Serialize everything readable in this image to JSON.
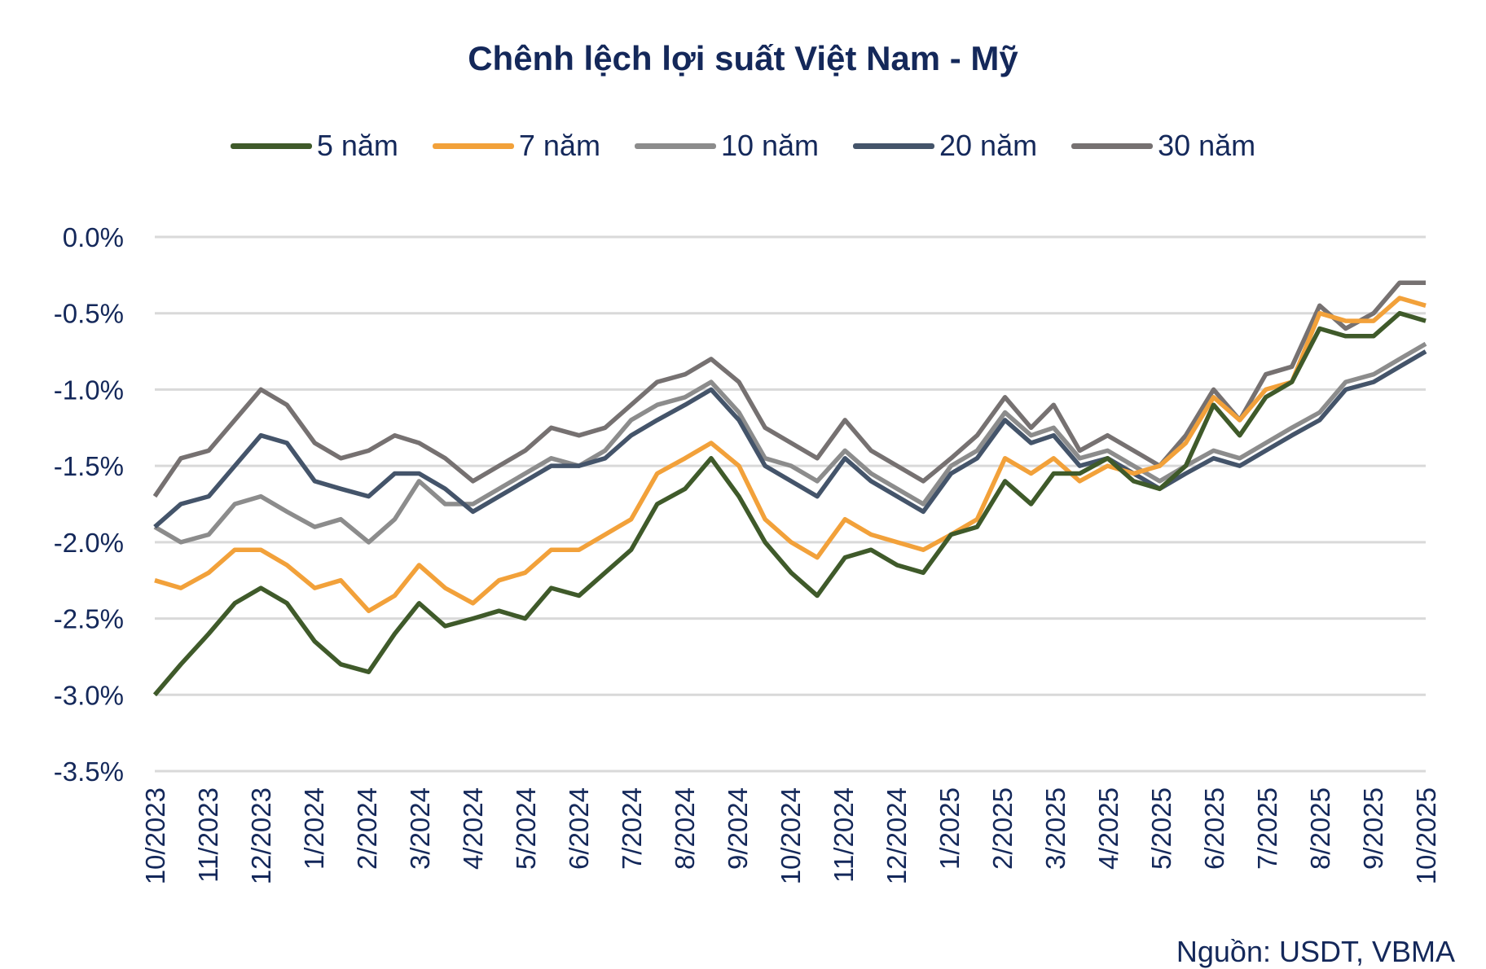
{
  "chart_data": {
    "type": "line",
    "title": "Chênh lệch lợi suất Việt Nam - Mỹ",
    "source": "Nguồn: USDT, VBMA",
    "ylim": [
      -3.5,
      0.0
    ],
    "y_ticks": [
      "0.0%",
      "-0.5%",
      "-1.0%",
      "-1.5%",
      "-2.0%",
      "-2.5%",
      "-3.0%",
      "-3.5%"
    ],
    "y_tick_values": [
      0.0,
      -0.5,
      -1.0,
      -1.5,
      -2.0,
      -2.5,
      -3.0,
      -3.5
    ],
    "x_ticks": [
      "10/2023",
      "11/2023",
      "12/2023",
      "1/2024",
      "2/2024",
      "3/2024",
      "4/2024",
      "5/2024",
      "6/2024",
      "7/2024",
      "8/2024",
      "9/2024",
      "10/2024",
      "11/2024",
      "12/2024",
      "1/2025",
      "2/2025",
      "3/2025",
      "4/2025",
      "5/2025",
      "6/2025",
      "7/2025",
      "8/2025",
      "9/2025",
      "10/2025"
    ],
    "grid": true,
    "legend_placement": "top",
    "x": [
      "2023-10-01",
      "2023-10-16",
      "2023-11-01",
      "2023-11-16",
      "2023-12-01",
      "2023-12-16",
      "2024-01-01",
      "2024-01-16",
      "2024-02-01",
      "2024-02-16",
      "2024-03-01",
      "2024-03-16",
      "2024-04-01",
      "2024-04-16",
      "2024-05-01",
      "2024-05-16",
      "2024-06-01",
      "2024-06-16",
      "2024-07-01",
      "2024-07-16",
      "2024-08-01",
      "2024-08-16",
      "2024-09-01",
      "2024-09-16",
      "2024-10-01",
      "2024-10-16",
      "2024-11-01",
      "2024-11-16",
      "2024-12-01",
      "2024-12-16",
      "2025-01-01",
      "2025-01-16",
      "2025-02-01",
      "2025-02-16",
      "2025-03-01",
      "2025-03-16",
      "2025-04-01",
      "2025-04-16",
      "2025-05-01",
      "2025-05-16",
      "2025-06-01",
      "2025-06-16",
      "2025-07-01",
      "2025-07-16",
      "2025-08-01",
      "2025-08-16",
      "2025-09-01",
      "2025-09-16",
      "2025-10-01"
    ],
    "series": [
      {
        "name": "5 năm",
        "color": "#3f5a2a",
        "values": [
          -3.0,
          -2.8,
          -2.6,
          -2.4,
          -2.3,
          -2.4,
          -2.65,
          -2.8,
          -2.85,
          -2.6,
          -2.4,
          -2.55,
          -2.5,
          -2.45,
          -2.5,
          -2.3,
          -2.35,
          -2.2,
          -2.05,
          -1.75,
          -1.65,
          -1.45,
          -1.7,
          -2.0,
          -2.2,
          -2.35,
          -2.1,
          -2.05,
          -2.15,
          -2.2,
          -1.95,
          -1.9,
          -1.6,
          -1.75,
          -1.55,
          -1.55,
          -1.45,
          -1.6,
          -1.65,
          -1.5,
          -1.1,
          -1.3,
          -1.05,
          -0.95,
          -0.6,
          -0.65,
          -0.65,
          -0.5,
          -0.55
        ]
      },
      {
        "name": "7 năm",
        "color": "#f2a13a",
        "values": [
          -2.25,
          -2.3,
          -2.2,
          -2.05,
          -2.05,
          -2.15,
          -2.3,
          -2.25,
          -2.45,
          -2.35,
          -2.15,
          -2.3,
          -2.4,
          -2.25,
          -2.2,
          -2.05,
          -2.05,
          -1.95,
          -1.85,
          -1.55,
          -1.45,
          -1.35,
          -1.5,
          -1.85,
          -2.0,
          -2.1,
          -1.85,
          -1.95,
          -2.0,
          -2.05,
          -1.95,
          -1.85,
          -1.45,
          -1.55,
          -1.45,
          -1.6,
          -1.5,
          -1.55,
          -1.5,
          -1.35,
          -1.05,
          -1.2,
          -1.0,
          -0.95,
          -0.5,
          -0.55,
          -0.55,
          -0.4,
          -0.45
        ]
      },
      {
        "name": "10 năm",
        "color": "#8c8c8c",
        "values": [
          -1.9,
          -2.0,
          -1.95,
          -1.75,
          -1.7,
          -1.8,
          -1.9,
          -1.85,
          -2.0,
          -1.85,
          -1.6,
          -1.75,
          -1.75,
          -1.65,
          -1.55,
          -1.45,
          -1.5,
          -1.4,
          -1.2,
          -1.1,
          -1.05,
          -0.95,
          -1.15,
          -1.45,
          -1.5,
          -1.6,
          -1.4,
          -1.55,
          -1.65,
          -1.75,
          -1.5,
          -1.4,
          -1.15,
          -1.3,
          -1.25,
          -1.45,
          -1.4,
          -1.5,
          -1.6,
          -1.5,
          -1.4,
          -1.45,
          -1.35,
          -1.25,
          -1.15,
          -0.95,
          -0.9,
          -0.8,
          -0.7
        ]
      },
      {
        "name": "20 năm",
        "color": "#44546a",
        "values": [
          -1.9,
          -1.75,
          -1.7,
          -1.5,
          -1.3,
          -1.35,
          -1.6,
          -1.65,
          -1.7,
          -1.55,
          -1.55,
          -1.65,
          -1.8,
          -1.7,
          -1.6,
          -1.5,
          -1.5,
          -1.45,
          -1.3,
          -1.2,
          -1.1,
          -1.0,
          -1.2,
          -1.5,
          -1.6,
          -1.7,
          -1.45,
          -1.6,
          -1.7,
          -1.8,
          -1.55,
          -1.45,
          -1.2,
          -1.35,
          -1.3,
          -1.5,
          -1.45,
          -1.55,
          -1.65,
          -1.55,
          -1.45,
          -1.5,
          -1.4,
          -1.3,
          -1.2,
          -1.0,
          -0.95,
          -0.85,
          -0.75
        ]
      },
      {
        "name": "30 năm",
        "color": "#767171",
        "values": [
          -1.7,
          -1.45,
          -1.4,
          -1.2,
          -1.0,
          -1.1,
          -1.35,
          -1.45,
          -1.4,
          -1.3,
          -1.35,
          -1.45,
          -1.6,
          -1.5,
          -1.4,
          -1.25,
          -1.3,
          -1.25,
          -1.1,
          -0.95,
          -0.9,
          -0.8,
          -0.95,
          -1.25,
          -1.35,
          -1.45,
          -1.2,
          -1.4,
          -1.5,
          -1.6,
          -1.45,
          -1.3,
          -1.05,
          -1.25,
          -1.1,
          -1.4,
          -1.3,
          -1.4,
          -1.5,
          -1.3,
          -1.0,
          -1.2,
          -0.9,
          -0.85,
          -0.45,
          -0.6,
          -0.5,
          -0.3,
          -0.3
        ]
      }
    ]
  }
}
